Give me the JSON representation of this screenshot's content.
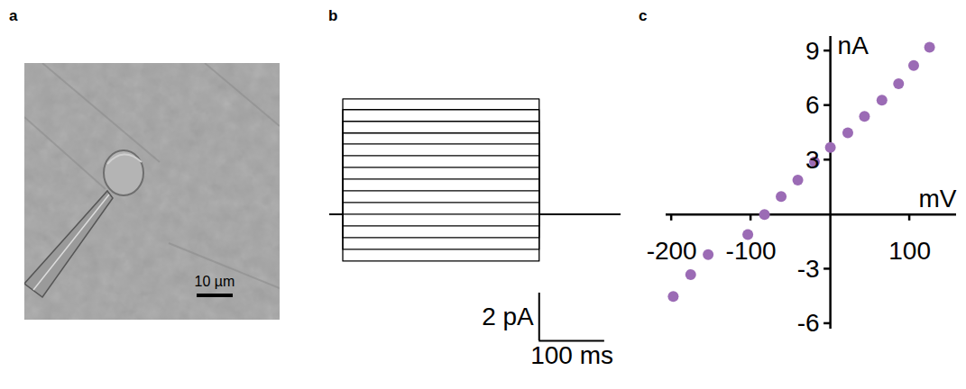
{
  "chart_data": [
    {
      "panel_label": "a",
      "type": "image",
      "scale_bar": {
        "value": 10,
        "label": "10 µm"
      }
    },
    {
      "panel_label": "b",
      "type": "line",
      "color": "#000000",
      "tick_labels": false,
      "xlim": [
        -20,
        425
      ],
      "ylim": [
        -5.3,
        6.5
      ],
      "step": [
        0,
        300
      ],
      "baseline": 0,
      "values": [
        -1.96,
        -1.47,
        -0.98,
        -0.49,
        0,
        0.49,
        0.98,
        1.47,
        1.96,
        2.45,
        2.94,
        3.4,
        3.89,
        4.38,
        4.83
      ],
      "scale_bar": {
        "x": 100,
        "x_label": "100 ms",
        "y": 2,
        "y_label": "2 pA"
      }
    },
    {
      "panel_label": "c",
      "type": "scatter",
      "color": "#9b6bb5",
      "marker": "circle",
      "xlabel": "mV",
      "ylabel": "nA",
      "x": [
        -198,
        -176,
        -154,
        -104,
        -83,
        -62,
        -41,
        -20,
        0,
        22,
        43,
        65,
        86,
        105,
        125
      ],
      "values": [
        -4.5,
        -3.3,
        -2.2,
        -1.1,
        0,
        1.0,
        1.9,
        2.9,
        3.7,
        4.5,
        5.4,
        6.3,
        7.2,
        8.2,
        9.2
      ],
      "xlim": [
        -207,
        159
      ],
      "ylim": [
        -6.3,
        9.8
      ],
      "xticks": [
        -200,
        -100,
        100
      ],
      "yticks": [
        -6,
        -3,
        3,
        6,
        9
      ]
    }
  ]
}
